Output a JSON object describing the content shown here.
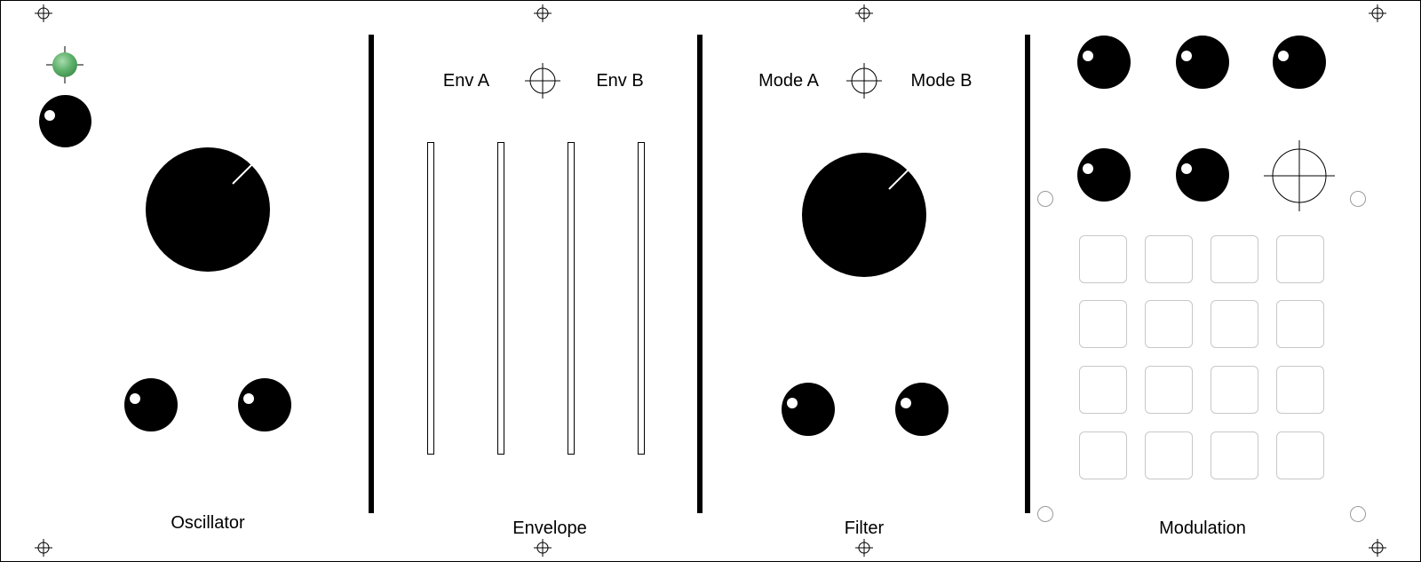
{
  "modules": {
    "oscillator": {
      "title": "Oscillator",
      "led_color": "#5db06a"
    },
    "envelope": {
      "title": "Envelope",
      "switch_left": "Env A",
      "switch_right": "Env B",
      "slider_count": 4
    },
    "filter": {
      "title": "Filter",
      "switch_left": "Mode A",
      "switch_right": "Mode B"
    },
    "modulation": {
      "title": "Modulation",
      "pad_rows": 4,
      "pad_cols": 4
    }
  },
  "icons": {
    "mount": "crosshair-icon",
    "switch": "crosshair-icon",
    "led": "led-icon"
  },
  "colors": {
    "panel": "#ffffff",
    "ink": "#000000",
    "pad_border": "#c8c8c8",
    "led": "#5db06a"
  }
}
